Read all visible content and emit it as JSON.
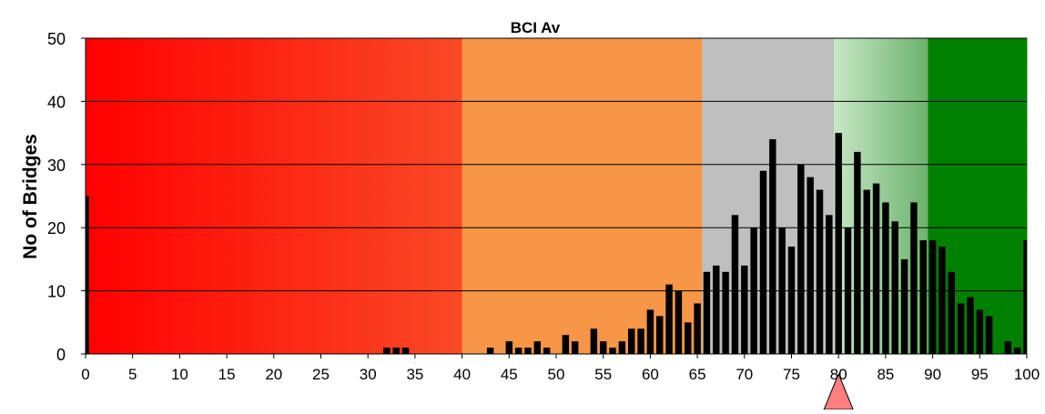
{
  "chart_data": {
    "type": "bar",
    "title": "BCI Av",
    "xlabel": "",
    "ylabel": "No of Bridges",
    "xlim": [
      0,
      100
    ],
    "ylim": [
      0,
      50
    ],
    "x_ticks": [
      0,
      5,
      10,
      15,
      20,
      25,
      30,
      35,
      40,
      45,
      50,
      55,
      60,
      65,
      70,
      75,
      80,
      85,
      90,
      95,
      100
    ],
    "y_ticks": [
      0,
      10,
      20,
      30,
      40,
      50
    ],
    "grid": "horizontal",
    "bar_color": "#000000",
    "background_bands": [
      {
        "from": 0,
        "to": 40,
        "color_start": "#ff0000",
        "color_end": "#f94a26"
      },
      {
        "from": 40,
        "to": 65.5,
        "color_start": "#f79646",
        "color_end": "#f79646"
      },
      {
        "from": 65.5,
        "to": 79.5,
        "color_start": "#bfbfbf",
        "color_end": "#bfbfbf"
      },
      {
        "from": 79.5,
        "to": 89.5,
        "color_start": "#c6e7c6",
        "color_end": "#6cb26c"
      },
      {
        "from": 89.5,
        "to": 100,
        "color_start": "#008000",
        "color_end": "#008000"
      }
    ],
    "marker": {
      "x": 80,
      "color": "#ff7f7f",
      "shape": "triangle"
    },
    "x": [
      0,
      32,
      33,
      34,
      43,
      45,
      46,
      47,
      48,
      49,
      51,
      52,
      54,
      55,
      56,
      57,
      58,
      59,
      60,
      61,
      62,
      63,
      64,
      65,
      66,
      67,
      68,
      69,
      70,
      71,
      72,
      73,
      74,
      75,
      76,
      77,
      78,
      79,
      80,
      81,
      82,
      83,
      84,
      85,
      86,
      87,
      88,
      89,
      90,
      91,
      92,
      93,
      94,
      95,
      96,
      98,
      99,
      100
    ],
    "values": [
      25,
      1,
      1,
      1,
      1,
      2,
      1,
      1,
      2,
      1,
      3,
      2,
      4,
      2,
      1,
      2,
      4,
      4,
      7,
      6,
      11,
      10,
      5,
      8,
      13,
      14,
      13,
      22,
      14,
      20,
      29,
      34,
      20,
      17,
      30,
      28,
      26,
      22,
      35,
      20,
      32,
      26,
      27,
      24,
      21,
      15,
      24,
      18,
      18,
      17,
      13,
      8,
      9,
      7,
      6,
      2,
      1,
      18
    ]
  }
}
